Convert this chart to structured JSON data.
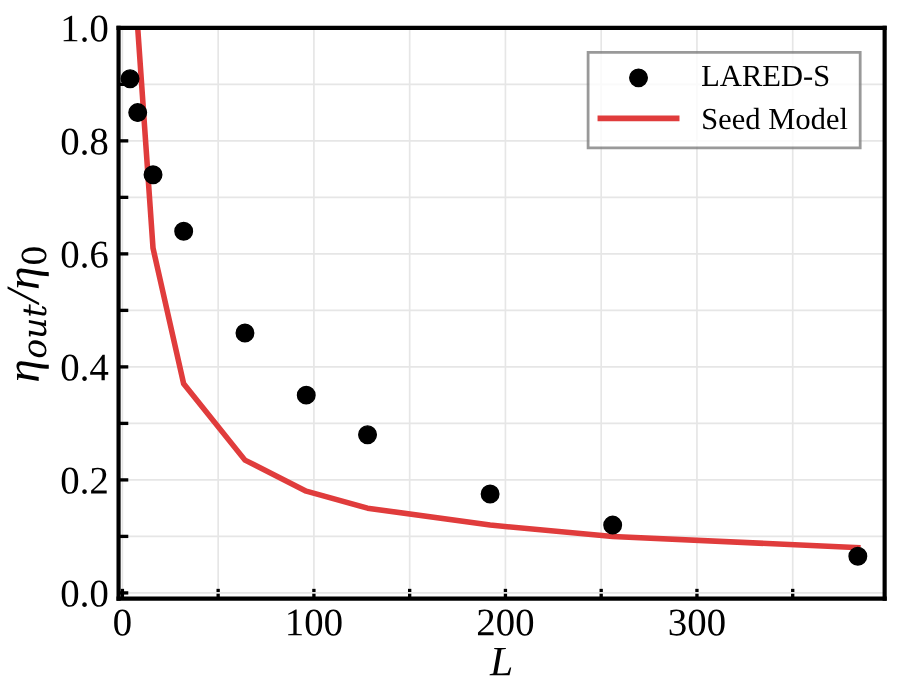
{
  "chart_data": {
    "type": "scatter",
    "xlabel": "L",
    "ylabel": "η$_{out}$/η$_{0}$",
    "xlim": [
      -2,
      398
    ],
    "ylim": [
      -0.01,
      1.0
    ],
    "xticks": [
      0,
      {
        "value": 50,
        "label": null
      },
      100,
      {
        "value": 150,
        "label": null
      },
      200,
      {
        "value": 250,
        "label": null
      },
      300,
      {
        "value": 350,
        "label": null
      }
    ],
    "yticks": [
      {
        "value": 0,
        "label": "0.0"
      },
      {
        "value": 0.1,
        "label": null
      },
      0.2,
      {
        "value": 0.3,
        "label": null
      },
      0.4,
      {
        "value": 0.5,
        "label": null
      },
      0.6,
      {
        "value": 0.7,
        "label": null
      },
      0.8,
      {
        "value": 0.9,
        "label": null
      },
      {
        "value": 1,
        "label": "1.0"
      }
    ],
    "grid": true,
    "legend": "top right",
    "series": [
      {
        "name": "LARED-S",
        "marker": "circle",
        "color": "#000000",
        "x": [
          4,
          8,
          16,
          32,
          64,
          96,
          128,
          192,
          256,
          384
        ],
        "values": [
          0.91,
          0.85,
          0.74,
          0.64,
          0.46,
          0.35,
          0.28,
          0.175,
          0.12,
          0.065
        ]
      },
      {
        "name": "Seed Model",
        "type": "line",
        "marker": "none",
        "line_style": "solid",
        "color": "#e03c3c",
        "x": [
          8,
          16,
          32,
          64,
          96,
          128,
          192,
          256,
          384
        ],
        "values": [
          1.0,
          0.61,
          0.37,
          0.235,
          0.18,
          0.15,
          0.12,
          0.1,
          0.08
        ]
      }
    ]
  }
}
